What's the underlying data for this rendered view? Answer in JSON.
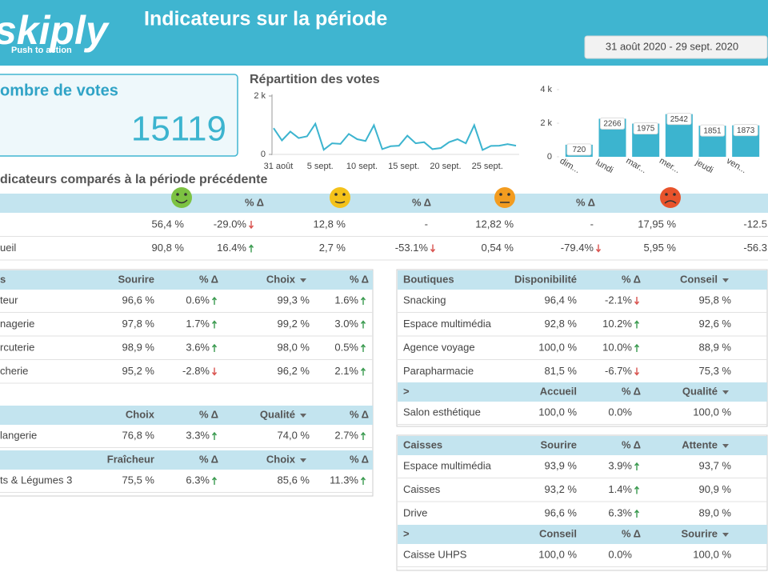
{
  "header": {
    "logo": "skiply",
    "tagline": "Push to action",
    "title": "Indicateurs sur la période",
    "date_range": "31 août 2020 - 29 sept. 2020"
  },
  "kpi": {
    "label": "ombre de votes",
    "value": 15119
  },
  "chart_data": [
    {
      "type": "line",
      "title": "Répartition des votes",
      "color": "#3cb4cf",
      "categories": [
        "31 août",
        null,
        null,
        null,
        null,
        "5 sept.",
        null,
        null,
        null,
        null,
        "10 sept.",
        null,
        null,
        null,
        null,
        "15 sept.",
        null,
        null,
        null,
        null,
        "20 sept.",
        null,
        null,
        null,
        null,
        "25 sept.",
        null,
        null,
        null,
        null
      ],
      "values": [
        900,
        480,
        780,
        560,
        620,
        1050,
        160,
        380,
        360,
        700,
        520,
        460,
        1000,
        180,
        280,
        300,
        640,
        380,
        420,
        180,
        220,
        420,
        520,
        380,
        1000,
        150,
        290,
        300,
        350,
        300
      ],
      "ylim": [
        0,
        2000
      ],
      "yticks": [
        0,
        {
          "value": 2000,
          "label": "2 k"
        }
      ]
    },
    {
      "type": "bar",
      "color": "#3cb4cf",
      "categories": [
        "dim...",
        "lundi",
        "mar...",
        "mer...",
        "jeudi",
        "ven..."
      ],
      "values": [
        720,
        2266,
        1975,
        2542,
        1851,
        1873
      ],
      "ylim": [
        0,
        4000
      ],
      "yticks": [
        0,
        {
          "value": 2000,
          "label": "2 k"
        },
        {
          "value": 4000,
          "label": "4 k"
        }
      ]
    }
  ],
  "comparison": {
    "title": "dicateurs comparés à la période précédente",
    "columns": [
      "% Δ",
      "% Δ",
      "% Δ"
    ],
    "rows": [
      {
        "cells": [
          "56,4 %",
          "-29.0%",
          "12,8 %",
          "-",
          "12,82 %",
          "-",
          "17,95 %",
          "-12.5"
        ]
      },
      {
        "label": "ueil",
        "cells": [
          "90,8 %",
          "16.4%",
          "2,7 %",
          "-53.1%",
          "0,54 %",
          "-79.4%",
          "5,95 %",
          "-56.3"
        ]
      }
    ]
  },
  "left_tables": [
    {
      "label_header": "s",
      "columns": [
        "Sourire",
        "% Δ",
        "Choix",
        "% Δ"
      ],
      "sort_column": 2,
      "rows": [
        [
          "teur",
          "96,6 %",
          "0.6%",
          "99,3 %",
          "1.6%"
        ],
        [
          "nagerie",
          "97,8 %",
          "1.7%",
          "99,2 %",
          "3.0%"
        ],
        [
          "rcuterie",
          "98,9 %",
          "3.6%",
          "98,0 %",
          "0.5%"
        ],
        [
          "cherie",
          "95,2 %",
          "-2.8%",
          "96,2 %",
          "2.1%"
        ]
      ]
    },
    {
      "columns": [
        "Choix",
        "% Δ",
        "Qualité",
        "% Δ"
      ],
      "sort_column": 2,
      "rows": [
        [
          "langerie",
          "76,8 %",
          "3.3%",
          "74,0 %",
          "2.7%"
        ]
      ]
    },
    {
      "columns": [
        "Fraîcheur",
        "% Δ",
        "Choix",
        "% Δ"
      ],
      "sort_column": 2,
      "rows": [
        [
          "ts & Légumes 3",
          "75,5 %",
          "6.3%",
          "85,6 %",
          "11.3%"
        ]
      ]
    }
  ],
  "right_tables": [
    {
      "blocks": [
        {
          "label_header": "Boutiques",
          "columns": [
            "Disponibilité",
            "% Δ",
            "Conseil"
          ],
          "sort_column": 2,
          "rows": [
            [
              "Snacking",
              "96,4 %",
              "-2.1%",
              "95,8 %"
            ],
            [
              "Espace multimédia",
              "92,8 %",
              "10.2%",
              "92,6 %"
            ],
            [
              "Agence voyage",
              "100,0 %",
              "10.0%",
              "88,9 %"
            ],
            [
              "Parapharmacie",
              "81,5 %",
              "-6.7%",
              "75,3 %"
            ]
          ]
        },
        {
          "label_header": ">",
          "columns": [
            "Accueil",
            "% Δ",
            "Qualité"
          ],
          "sort_column": 2,
          "rows": [
            [
              "Salon esthétique",
              "100,0 %",
              "0.0%",
              "100,0 %"
            ]
          ]
        }
      ]
    },
    {
      "blocks": [
        {
          "label_header": "Caisses",
          "columns": [
            "Sourire",
            "% Δ",
            "Attente"
          ],
          "sort_column": 2,
          "rows": [
            [
              "Espace multimédia",
              "93,9 %",
              "3.9%",
              "93,7 %"
            ],
            [
              "Caisses",
              "93,2 %",
              "1.4%",
              "90,9 %"
            ],
            [
              "Drive",
              "96,6 %",
              "6.3%",
              "89,0 %"
            ]
          ]
        },
        {
          "label_header": ">",
          "columns": [
            "Conseil",
            "% Δ",
            "Sourire"
          ],
          "sort_column": 2,
          "rows": [
            [
              "Caisse UHPS",
              "100,0 %",
              "0.0%",
              "100,0 %"
            ]
          ]
        }
      ]
    }
  ]
}
